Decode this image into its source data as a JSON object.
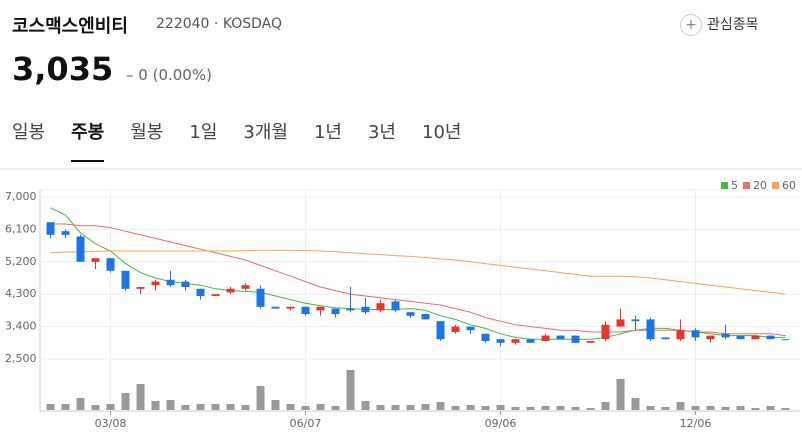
{
  "header": {
    "name": "코스맥스엔비티",
    "code": "222040",
    "market": "KOSDAQ",
    "price": "3,035",
    "change": "0 (0.00%)",
    "watch": "관심종목"
  },
  "tabs": [
    "일봉",
    "주봉",
    "월봉",
    "1일",
    "3개월",
    "1년",
    "3년",
    "10년"
  ],
  "chart_data": {
    "type": "candlestick",
    "categories": [
      null,
      null,
      null,
      null,
      "03/08",
      null,
      null,
      null,
      null,
      null,
      null,
      null,
      null,
      null,
      null,
      null,
      null,
      "06/07",
      null,
      null,
      null,
      null,
      null,
      null,
      null,
      null,
      null,
      null,
      null,
      null,
      "09/06",
      null,
      null,
      null,
      null,
      null,
      null,
      null,
      null,
      null,
      null,
      null,
      null,
      "12/06",
      null,
      null,
      null,
      null,
      null,
      null
    ],
    "open": [
      6300,
      6050,
      5900,
      5200,
      5300,
      4950,
      4450,
      4550,
      4700,
      4650,
      4450,
      4250,
      4350,
      4450,
      4450,
      3950,
      3900,
      3950,
      3850,
      3900,
      3900,
      3950,
      3850,
      4100,
      3800,
      3750,
      3550,
      3250,
      3400,
      3200,
      3050,
      2950,
      3050,
      3000,
      3150,
      3150,
      2950,
      3050,
      3400,
      3600,
      3600,
      3100,
      3050,
      3300,
      3050,
      3200,
      3150,
      3050,
      3150,
      3050
    ],
    "high": [
      6300,
      6100,
      5950,
      5300,
      5300,
      4950,
      4500,
      4700,
      4950,
      4700,
      4450,
      4300,
      4500,
      4600,
      4550,
      3950,
      3950,
      3950,
      3950,
      3900,
      4500,
      4200,
      4150,
      4150,
      3800,
      3750,
      3550,
      3450,
      3400,
      3200,
      3050,
      3050,
      3050,
      3200,
      3150,
      3150,
      3000,
      3550,
      3900,
      3700,
      3650,
      3100,
      3600,
      3350,
      3150,
      3450,
      3150,
      3150,
      3150,
      3050
    ],
    "low": [
      5850,
      5850,
      5200,
      5000,
      4900,
      4400,
      4300,
      4400,
      4500,
      4400,
      4150,
      4250,
      4300,
      4400,
      3900,
      3900,
      3850,
      3700,
      3700,
      3650,
      3800,
      3750,
      3800,
      3800,
      3650,
      3600,
      3000,
      3200,
      3200,
      2950,
      2850,
      2900,
      2950,
      3000,
      3050,
      2950,
      2950,
      3000,
      3400,
      3300,
      3000,
      3050,
      3000,
      3000,
      2950,
      3050,
      3050,
      3050,
      3050,
      3035
    ],
    "close": [
      5950,
      5950,
      5200,
      5300,
      4950,
      4450,
      4500,
      4650,
      4550,
      4500,
      4250,
      4300,
      4450,
      4550,
      3950,
      3900,
      3950,
      3750,
      3950,
      3750,
      3850,
      3800,
      4050,
      3850,
      3700,
      3600,
      3050,
      3400,
      3300,
      3000,
      2950,
      3050,
      2950,
      3150,
      3050,
      2950,
      3000,
      3450,
      3600,
      3550,
      3050,
      3050,
      3300,
      3100,
      3150,
      3100,
      3050,
      3150,
      3050,
      3035
    ],
    "up_color": "#e8332f",
    "down_color": "#1d74e4",
    "volume": [
      6,
      6,
      12,
      5,
      6,
      17,
      26,
      9,
      10,
      5,
      6,
      6,
      6,
      5,
      24,
      10,
      6,
      4,
      6,
      4,
      40,
      9,
      5,
      5,
      5,
      6,
      8,
      4,
      5,
      4,
      5,
      3,
      3,
      4,
      4,
      3,
      2,
      8,
      31,
      12,
      4,
      3,
      8,
      4,
      4,
      3,
      4,
      2,
      4,
      2
    ],
    "volume_color": "#999999",
    "series": [
      {
        "name": "5",
        "color": "#3cbf3c",
        "values": [
          6700,
          6500,
          6000,
          5700,
          5500,
          5150,
          4900,
          4750,
          4650,
          4600,
          4550,
          4450,
          4400,
          4380,
          4350,
          4250,
          4150,
          4050,
          3980,
          3920,
          3900,
          3880,
          3870,
          3880,
          3900,
          3850,
          3700,
          3600,
          3450,
          3350,
          3200,
          3100,
          3050,
          3050,
          3050,
          3050,
          3050,
          3100,
          3200,
          3300,
          3350,
          3350,
          3300,
          3250,
          3200,
          3150,
          3150,
          3150,
          3100,
          3100
        ]
      },
      {
        "name": "20",
        "color": "#f06a6a",
        "values": [
          6250,
          6250,
          6200,
          6200,
          6150,
          6050,
          5950,
          5850,
          5750,
          5650,
          5550,
          5450,
          5350,
          5250,
          5100,
          4950,
          4800,
          4650,
          4500,
          4400,
          4300,
          4250,
          4200,
          4150,
          4100,
          4050,
          4000,
          3900,
          3800,
          3650,
          3550,
          3450,
          3400,
          3350,
          3300,
          3300,
          3250,
          3250,
          3250,
          3300,
          3300,
          3300,
          3300,
          3250,
          3250,
          3200,
          3200,
          3200,
          3200,
          3150
        ]
      },
      {
        "name": "60",
        "color": "#f5a55a",
        "values": [
          5450,
          5470,
          5480,
          5490,
          5500,
          5500,
          5500,
          5500,
          5500,
          5500,
          5500,
          5500,
          5500,
          5510,
          5520,
          5520,
          5520,
          5510,
          5500,
          5480,
          5450,
          5420,
          5400,
          5370,
          5350,
          5320,
          5280,
          5250,
          5200,
          5150,
          5100,
          5050,
          5000,
          4950,
          4900,
          4850,
          4800,
          4800,
          4800,
          4780,
          4750,
          4700,
          4650,
          4600,
          4550,
          4500,
          4450,
          4400,
          4350,
          4300
        ]
      }
    ],
    "ylim": [
      2500,
      7000
    ],
    "yticks": [
      {
        "value": 2500,
        "label": "2,500"
      },
      {
        "value": 3400,
        "label": "3,400"
      },
      {
        "value": 4300,
        "label": "4,300"
      },
      {
        "value": 5200,
        "label": "5,200"
      },
      {
        "value": 6100,
        "label": "6,100"
      },
      {
        "value": 7000,
        "label": "7,000"
      }
    ],
    "grid": true,
    "legend": "top-right"
  }
}
